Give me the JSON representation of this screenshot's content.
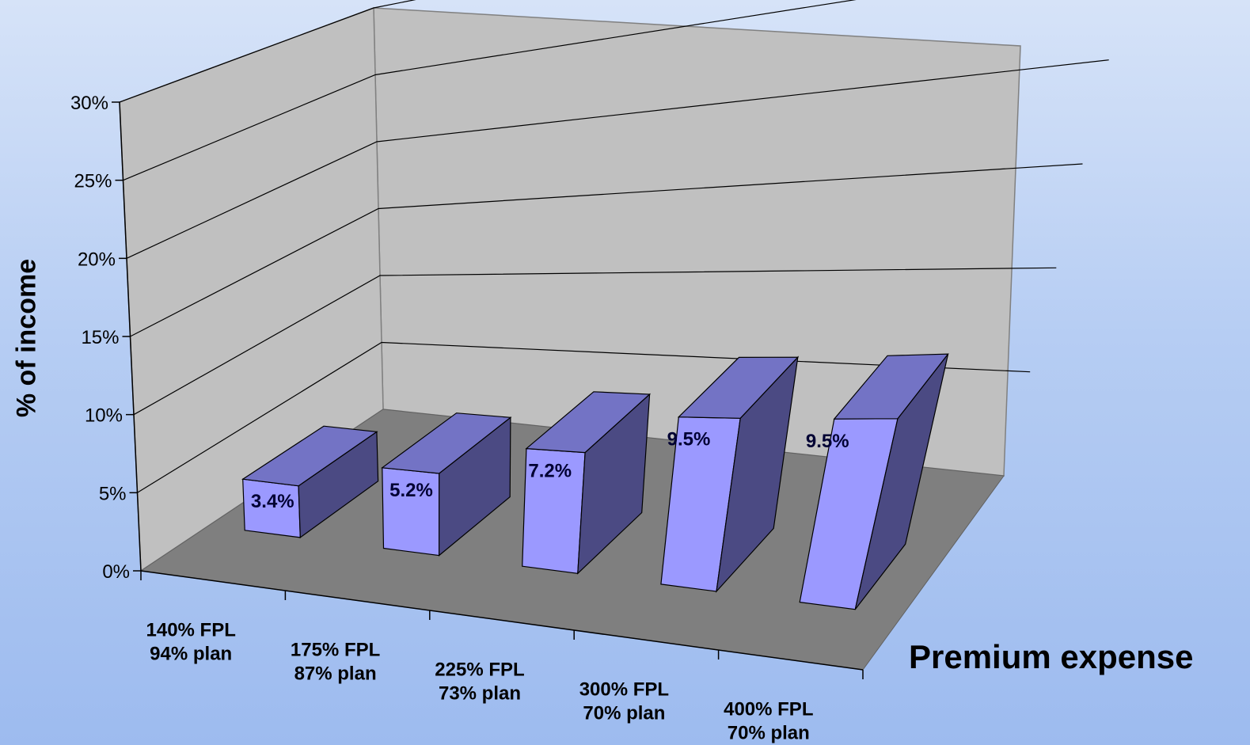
{
  "chart_data": {
    "type": "bar",
    "title": "",
    "xlabel": "Premium expense",
    "ylabel": "% of income",
    "ylim": [
      0,
      30
    ],
    "yticks": [
      "0%",
      "5%",
      "10%",
      "15%",
      "20%",
      "25%",
      "30%"
    ],
    "categories": [
      [
        "140% FPL",
        "94% plan"
      ],
      [
        "175% FPL",
        "87% plan"
      ],
      [
        "225% FPL",
        "73% plan"
      ],
      [
        "300% FPL",
        "70% plan"
      ],
      [
        "400% FPL",
        "70% plan"
      ]
    ],
    "values": [
      3.4,
      5.2,
      7.2,
      9.5,
      9.5
    ],
    "data_labels": [
      "3.4%",
      "5.2%",
      "7.2%",
      "9.5%",
      "9.5%"
    ],
    "grid": true,
    "legend": "none",
    "colors": {
      "bar_front": "#9b99ff",
      "bar_top": "#7373c5",
      "bar_side": "#4b4a83",
      "back_wall": "#c0c0c0",
      "side_wall": "#c0c0c0",
      "floor": "#7f7f7f"
    }
  }
}
